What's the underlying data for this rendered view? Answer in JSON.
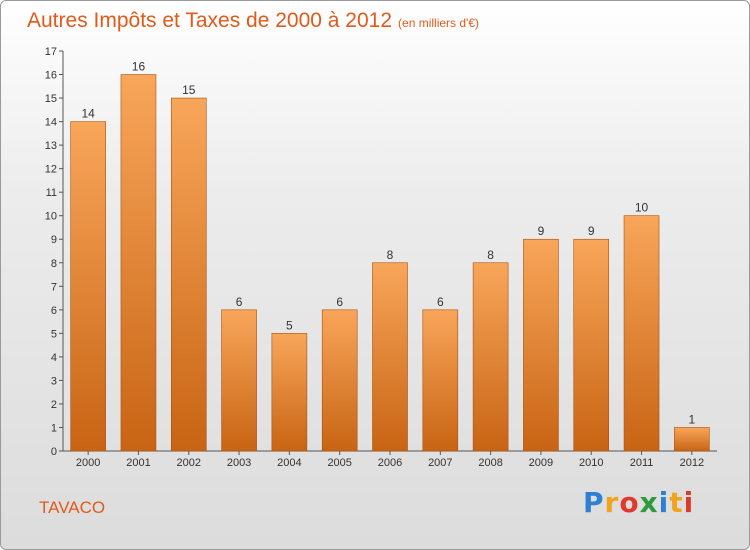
{
  "title": "Autres Impôts et Taxes de 2000 à 2012",
  "subtitle": "(en milliers d'€)",
  "location": "TAVACO",
  "logo": {
    "text": "Proxiti",
    "letter_colors": [
      "#2f7fd3",
      "#f2a31a",
      "#e0382b",
      "#2f9a3b",
      "#2f7fd3",
      "#f2a31a",
      "#e0382b"
    ]
  },
  "colors": {
    "title": "#e05a1a",
    "bar_top": "#f8a65a",
    "bar_bottom": "#c86414",
    "bar_edge": "#a8520f"
  },
  "chart_data": {
    "type": "bar",
    "categories": [
      "2000",
      "2001",
      "2002",
      "2003",
      "2004",
      "2005",
      "2006",
      "2007",
      "2008",
      "2009",
      "2010",
      "2011",
      "2012"
    ],
    "values": [
      14,
      16,
      15,
      6,
      5,
      6,
      8,
      6,
      8,
      9,
      9,
      10,
      1
    ],
    "yticks": [
      "0",
      "1",
      "2",
      "3",
      "4",
      "5",
      "6",
      "7",
      "8",
      "9",
      "10",
      "11",
      "12",
      "13",
      "14",
      "15",
      "16",
      "17"
    ],
    "ylim": [
      0,
      17
    ],
    "grid": false,
    "legend": "none"
  }
}
